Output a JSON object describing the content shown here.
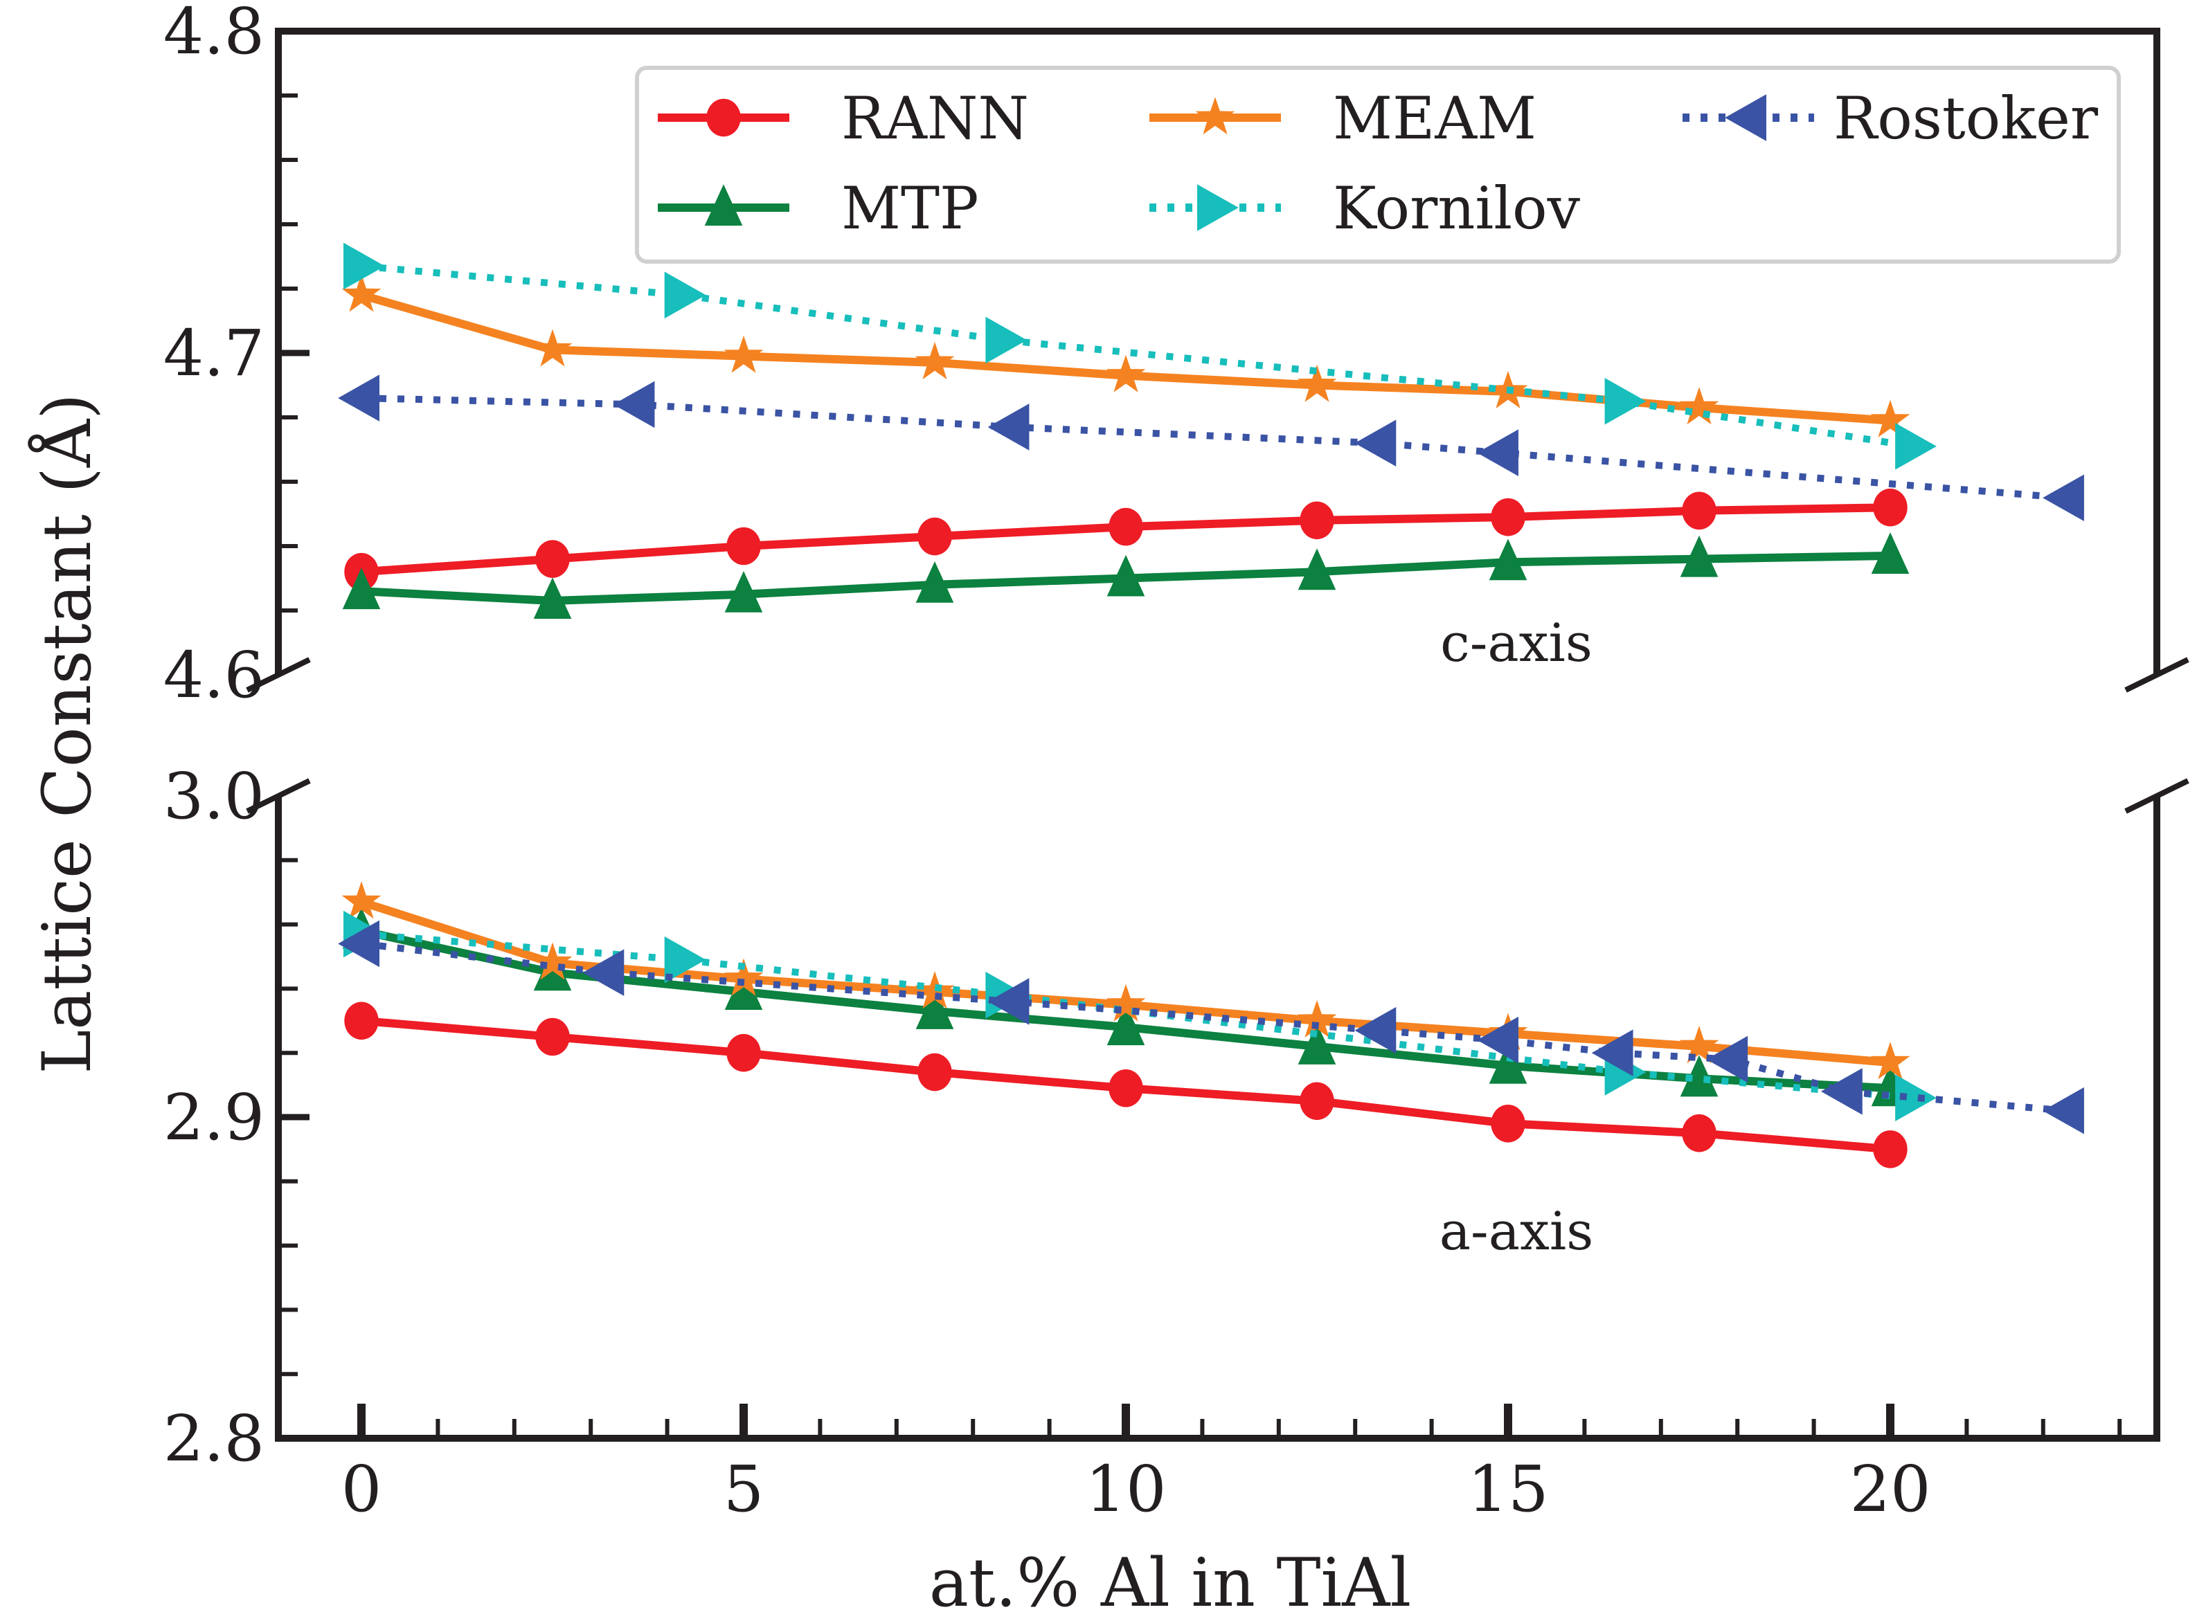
{
  "chart_data": {
    "type": "line",
    "xlabel": "at.% Al in TiAl",
    "ylabel": "Lattice Constant (Å)",
    "xlim": [
      -1,
      23.5
    ],
    "x_ticks": [
      "0",
      "5",
      "10",
      "15",
      "20"
    ],
    "x_tick_values": [
      0,
      5,
      10,
      15,
      20
    ],
    "legend_position": "top-right",
    "colors": {
      "RANN": "#ee1c25",
      "MEAM": "#f58220",
      "Rostoker": "#3a53a4",
      "MTP": "#0c8140",
      "Kornilov": "#17bebb"
    },
    "panels": [
      {
        "name": "c-axis",
        "annotation": "c-axis",
        "ylim": [
          4.6,
          4.8
        ],
        "y_ticks": [
          "4.6",
          "4.7",
          "4.8"
        ],
        "y_tick_values": [
          4.6,
          4.7,
          4.8
        ],
        "series": [
          {
            "name": "RANN",
            "style": "solid",
            "marker": "circle",
            "x": [
              0,
              2.5,
              5,
              7.5,
              10,
              12.5,
              15,
              17.5,
              20
            ],
            "y": [
              4.632,
              4.636,
              4.64,
              4.643,
              4.646,
              4.648,
              4.649,
              4.651,
              4.652
            ]
          },
          {
            "name": "MTP",
            "style": "solid",
            "marker": "triangle-up",
            "x": [
              0,
              2.5,
              5,
              7.5,
              10,
              12.5,
              15,
              17.5,
              20
            ],
            "y": [
              4.626,
              4.623,
              4.625,
              4.628,
              4.63,
              4.632,
              4.635,
              4.636,
              4.637
            ]
          },
          {
            "name": "MEAM",
            "style": "solid",
            "marker": "star",
            "x": [
              0,
              2.5,
              5,
              7.5,
              10,
              12.5,
              15,
              17.5,
              20
            ],
            "y": [
              4.718,
              4.701,
              4.699,
              4.697,
              4.693,
              4.69,
              4.688,
              4.683,
              4.679
            ]
          },
          {
            "name": "Kornilov",
            "style": "dotted",
            "marker": "triangle-right",
            "x": [
              0,
              4.2,
              8.4,
              16.5,
              20.3
            ],
            "y": [
              4.727,
              4.718,
              4.704,
              4.685,
              4.671
            ]
          },
          {
            "name": "Rostoker",
            "style": "dotted",
            "marker": "triangle-left",
            "x": [
              0,
              3.6,
              8.5,
              13.3,
              14.9,
              22.3
            ],
            "y": [
              4.686,
              4.684,
              4.677,
              4.672,
              4.669,
              4.655
            ]
          }
        ]
      },
      {
        "name": "a-axis",
        "annotation": "a-axis",
        "ylim": [
          2.8,
          3.0
        ],
        "y_ticks": [
          "2.8",
          "2.9",
          "3.0"
        ],
        "y_tick_values": [
          2.8,
          2.9,
          3.0
        ],
        "series": [
          {
            "name": "RANN",
            "style": "solid",
            "marker": "circle",
            "x": [
              0,
              2.5,
              5,
              7.5,
              10,
              12.5,
              15,
              17.5,
              20
            ],
            "y": [
              2.93,
              2.925,
              2.92,
              2.914,
              2.909,
              2.905,
              2.898,
              2.895,
              2.89
            ]
          },
          {
            "name": "MTP",
            "style": "solid",
            "marker": "triangle-up",
            "x": [
              0,
              2.5,
              5,
              7.5,
              10,
              12.5,
              15,
              17.5,
              20
            ],
            "y": [
              2.958,
              2.945,
              2.939,
              2.933,
              2.928,
              2.922,
              2.916,
              2.912,
              2.909
            ]
          },
          {
            "name": "MEAM",
            "style": "solid",
            "marker": "star",
            "x": [
              0,
              2.5,
              5,
              7.5,
              10,
              12.5,
              15,
              17.5,
              20
            ],
            "y": [
              2.967,
              2.948,
              2.943,
              2.939,
              2.935,
              2.93,
              2.926,
              2.922,
              2.917
            ]
          },
          {
            "name": "Kornilov",
            "style": "dotted",
            "marker": "triangle-right",
            "x": [
              0,
              4.2,
              8.4,
              16.5,
              20.3
            ],
            "y": [
              2.957,
              2.949,
              2.938,
              2.914,
              2.906
            ]
          },
          {
            "name": "Rostoker",
            "style": "dotted",
            "marker": "triangle-left",
            "x": [
              0,
              3.2,
              8.5,
              13.3,
              14.9,
              16.4,
              17.9,
              19.4,
              22.3
            ],
            "y": [
              2.954,
              2.945,
              2.936,
              2.927,
              2.924,
              2.92,
              2.918,
              2.908,
              2.902
            ]
          }
        ]
      }
    ],
    "legend": [
      {
        "name": "RANN"
      },
      {
        "name": "MEAM"
      },
      {
        "name": "Rostoker"
      },
      {
        "name": "MTP"
      },
      {
        "name": "Kornilov"
      }
    ]
  }
}
